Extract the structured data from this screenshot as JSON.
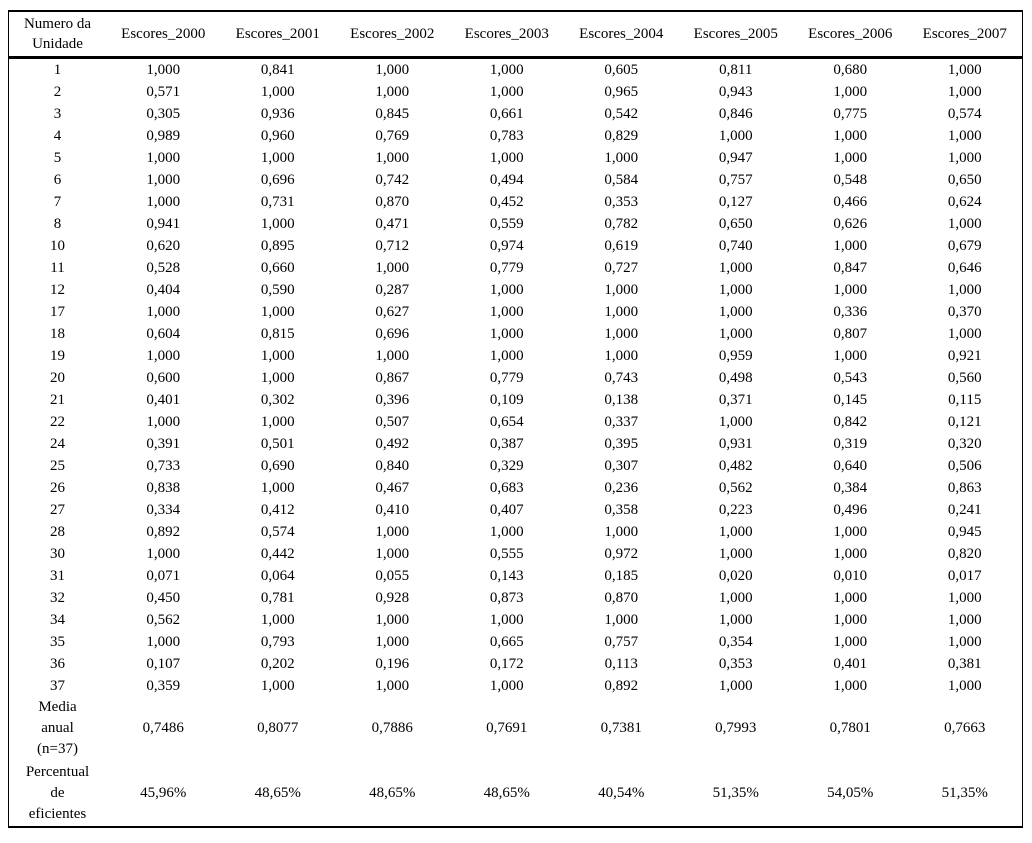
{
  "table": {
    "columns": [
      [
        "Numero da",
        "Unidade"
      ],
      "Escores_2000",
      "Escores_2001",
      "Escores_2002",
      "Escores_2003",
      "Escores_2004",
      "Escores_2005",
      "Escores_2006",
      "Escores_2007"
    ],
    "rows": [
      [
        "1",
        "1,000",
        "0,841",
        "1,000",
        "1,000",
        "0,605",
        "0,811",
        "0,680",
        "1,000"
      ],
      [
        "2",
        "0,571",
        "1,000",
        "1,000",
        "1,000",
        "0,965",
        "0,943",
        "1,000",
        "1,000"
      ],
      [
        "3",
        "0,305",
        "0,936",
        "0,845",
        "0,661",
        "0,542",
        "0,846",
        "0,775",
        "0,574"
      ],
      [
        "4",
        "0,989",
        "0,960",
        "0,769",
        "0,783",
        "0,829",
        "1,000",
        "1,000",
        "1,000"
      ],
      [
        "5",
        "1,000",
        "1,000",
        "1,000",
        "1,000",
        "1,000",
        "0,947",
        "1,000",
        "1,000"
      ],
      [
        "6",
        "1,000",
        "0,696",
        "0,742",
        "0,494",
        "0,584",
        "0,757",
        "0,548",
        "0,650"
      ],
      [
        "7",
        "1,000",
        "0,731",
        "0,870",
        "0,452",
        "0,353",
        "0,127",
        "0,466",
        "0,624"
      ],
      [
        "8",
        "0,941",
        "1,000",
        "0,471",
        "0,559",
        "0,782",
        "0,650",
        "0,626",
        "1,000"
      ],
      [
        "10",
        "0,620",
        "0,895",
        "0,712",
        "0,974",
        "0,619",
        "0,740",
        "1,000",
        "0,679"
      ],
      [
        "11",
        "0,528",
        "0,660",
        "1,000",
        "0,779",
        "0,727",
        "1,000",
        "0,847",
        "0,646"
      ],
      [
        "12",
        "0,404",
        "0,590",
        "0,287",
        "1,000",
        "1,000",
        "1,000",
        "1,000",
        "1,000"
      ],
      [
        "17",
        "1,000",
        "1,000",
        "0,627",
        "1,000",
        "1,000",
        "1,000",
        "0,336",
        "0,370"
      ],
      [
        "18",
        "0,604",
        "0,815",
        "0,696",
        "1,000",
        "1,000",
        "1,000",
        "0,807",
        "1,000"
      ],
      [
        "19",
        "1,000",
        "1,000",
        "1,000",
        "1,000",
        "1,000",
        "0,959",
        "1,000",
        "0,921"
      ],
      [
        "20",
        "0,600",
        "1,000",
        "0,867",
        "0,779",
        "0,743",
        "0,498",
        "0,543",
        "0,560"
      ],
      [
        "21",
        "0,401",
        "0,302",
        "0,396",
        "0,109",
        "0,138",
        "0,371",
        "0,145",
        "0,115"
      ],
      [
        "22",
        "1,000",
        "1,000",
        "0,507",
        "0,654",
        "0,337",
        "1,000",
        "0,842",
        "0,121"
      ],
      [
        "24",
        "0,391",
        "0,501",
        "0,492",
        "0,387",
        "0,395",
        "0,931",
        "0,319",
        "0,320"
      ],
      [
        "25",
        "0,733",
        "0,690",
        "0,840",
        "0,329",
        "0,307",
        "0,482",
        "0,640",
        "0,506"
      ],
      [
        "26",
        "0,838",
        "1,000",
        "0,467",
        "0,683",
        "0,236",
        "0,562",
        "0,384",
        "0,863"
      ],
      [
        "27",
        "0,334",
        "0,412",
        "0,410",
        "0,407",
        "0,358",
        "0,223",
        "0,496",
        "0,241"
      ],
      [
        "28",
        "0,892",
        "0,574",
        "1,000",
        "1,000",
        "1,000",
        "1,000",
        "1,000",
        "0,945"
      ],
      [
        "30",
        "1,000",
        "0,442",
        "1,000",
        "0,555",
        "0,972",
        "1,000",
        "1,000",
        "0,820"
      ],
      [
        "31",
        "0,071",
        "0,064",
        "0,055",
        "0,143",
        "0,185",
        "0,020",
        "0,010",
        "0,017"
      ],
      [
        "32",
        "0,450",
        "0,781",
        "0,928",
        "0,873",
        "0,870",
        "1,000",
        "1,000",
        "1,000"
      ],
      [
        "34",
        "0,562",
        "1,000",
        "1,000",
        "1,000",
        "1,000",
        "1,000",
        "1,000",
        "1,000"
      ],
      [
        "35",
        "1,000",
        "0,793",
        "1,000",
        "0,665",
        "0,757",
        "0,354",
        "1,000",
        "1,000"
      ],
      [
        "36",
        "0,107",
        "0,202",
        "0,196",
        "0,172",
        "0,113",
        "0,353",
        "0,401",
        "0,381"
      ],
      [
        "37",
        "0,359",
        "1,000",
        "1,000",
        "1,000",
        "0,892",
        "1,000",
        "1,000",
        "1,000"
      ]
    ],
    "summary_rows": [
      {
        "label": "Media anual (n=37)",
        "label_lines": [
          "Media",
          "anual",
          "(n=37)"
        ],
        "values": [
          "0,7486",
          "0,8077",
          "0,7886",
          "0,7691",
          "0,7381",
          "0,7993",
          "0,7801",
          "0,7663"
        ]
      },
      {
        "label": "Percentual de eficientes",
        "label_lines": [
          "Percentual",
          "de",
          "eficientes"
        ],
        "values": [
          "45,96%",
          "48,65%",
          "48,65%",
          "48,65%",
          "40,54%",
          "51,35%",
          "54,05%",
          "51,35%"
        ]
      }
    ],
    "colors": {
      "text": "#000000",
      "background": "#ffffff",
      "border": "#000000"
    }
  }
}
